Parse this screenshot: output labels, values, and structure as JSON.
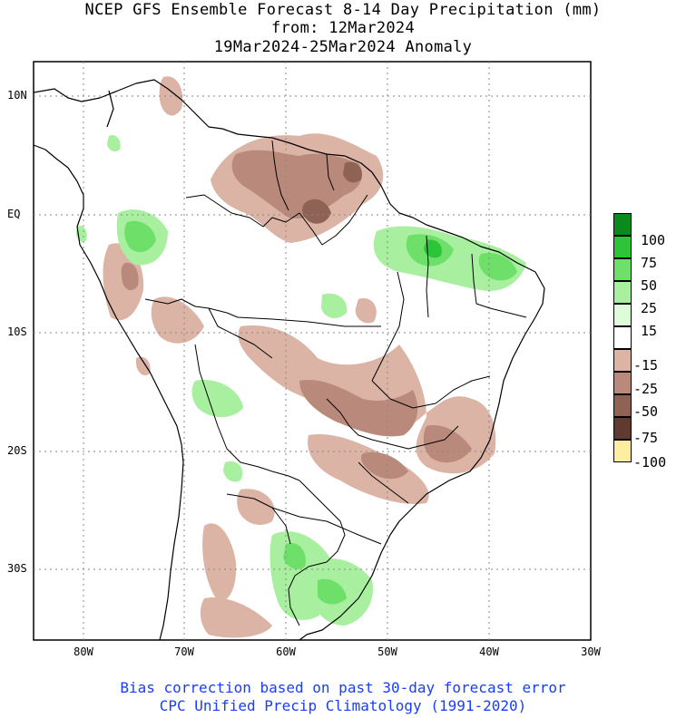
{
  "title": {
    "line1": "NCEP GFS Ensemble Forecast 8-14 Day Precipitation (mm)",
    "line2": "from: 12Mar2024",
    "line3": "19Mar2024-25Mar2024 Anomaly"
  },
  "lat_labels": [
    "10N",
    "EQ",
    "10S",
    "20S",
    "30S"
  ],
  "lon_labels": [
    "80W",
    "70W",
    "60W",
    "50W",
    "40W",
    "30W"
  ],
  "legend": {
    "labels": [
      "100",
      "75",
      "50",
      "25",
      "15",
      "-15",
      "-25",
      "-50",
      "-75",
      "-100"
    ],
    "colors": [
      "#0a8a1a",
      "#2ec43a",
      "#6ee06a",
      "#a8f0a0",
      "#e0fadc",
      "#ffffff",
      "#dbb4a6",
      "#b98a7b",
      "#8e6356",
      "#5e3a31",
      "#ffeea0"
    ]
  },
  "footer": {
    "line1": "Bias correction based on past 30-day forecast error",
    "line2": "CPC Unified Precip Climatology (1991-2020)"
  },
  "map_colors": {
    "dry_light": "#dbb4a6",
    "dry_mid": "#b98a7b",
    "dry_dark": "#8e6356",
    "wet_light": "#a8f0a0",
    "wet_mid": "#6ee06a",
    "wet_dark": "#2ec43a"
  }
}
